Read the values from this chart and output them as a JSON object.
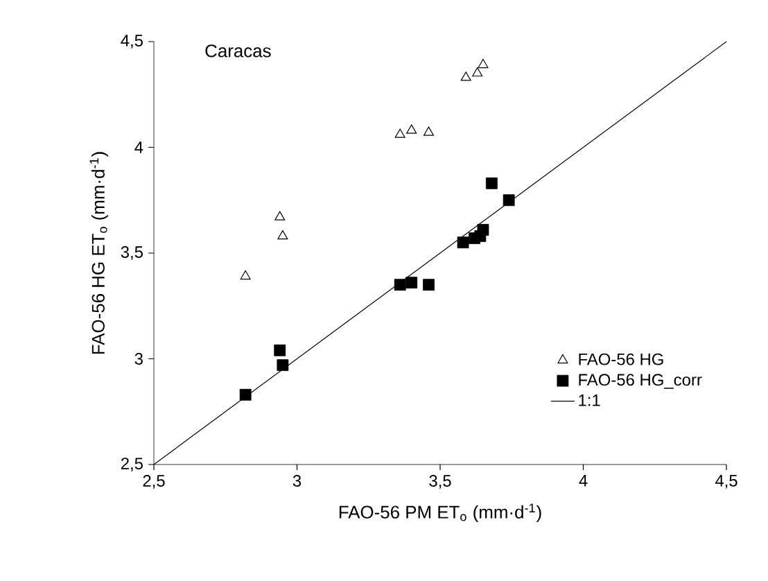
{
  "chart_data": {
    "type": "scatter",
    "title": "Caracas",
    "xlabel": "FAO-56 PM ET$_{o}$ (mm·d$^{-1}$)",
    "ylabel": "FAO-56  HG ET$_{o}$ (mm·d$^{-1}$)",
    "xlim": [
      2.5,
      4.5
    ],
    "ylim": [
      2.5,
      4.5
    ],
    "xticks": [
      {
        "value": 2.5,
        "label": "2,5"
      },
      {
        "value": 3,
        "label": "3"
      },
      {
        "value": 3.5,
        "label": "3,5"
      },
      {
        "value": 4,
        "label": "4"
      },
      {
        "value": 4.5,
        "label": "4,5"
      }
    ],
    "yticks": [
      {
        "value": 2.5,
        "label": "2,5"
      },
      {
        "value": 3,
        "label": "3"
      },
      {
        "value": 3.5,
        "label": "3,5"
      },
      {
        "value": 4,
        "label": "4"
      },
      {
        "value": 4.5,
        "label": "4,5"
      }
    ],
    "legend": "bottom right",
    "grid": false,
    "series": [
      {
        "name": "FAO-56 HG",
        "color": "#000000",
        "marker": "triangle",
        "x": [
          2.82,
          2.94,
          2.95,
          3.36,
          3.4,
          3.46,
          3.59,
          3.63,
          3.65
        ],
        "values": [
          3.39,
          3.67,
          3.58,
          4.06,
          4.08,
          4.07,
          4.33,
          4.35,
          4.39
        ]
      },
      {
        "name": "FAO-56 HG_corr",
        "color": "#000000",
        "marker": "square",
        "x": [
          2.82,
          2.94,
          2.95,
          3.36,
          3.4,
          3.46,
          3.58,
          3.62,
          3.64,
          3.65,
          3.68,
          3.74
        ],
        "values": [
          2.83,
          3.04,
          2.97,
          3.35,
          3.36,
          3.35,
          3.55,
          3.57,
          3.58,
          3.61,
          3.83,
          3.75
        ]
      },
      {
        "name": "1:1",
        "type": "line",
        "color": "#000000",
        "marker": "none",
        "line_style": "solid",
        "x": [
          2.5,
          4.5
        ],
        "values": [
          2.5,
          4.5
        ]
      }
    ]
  }
}
